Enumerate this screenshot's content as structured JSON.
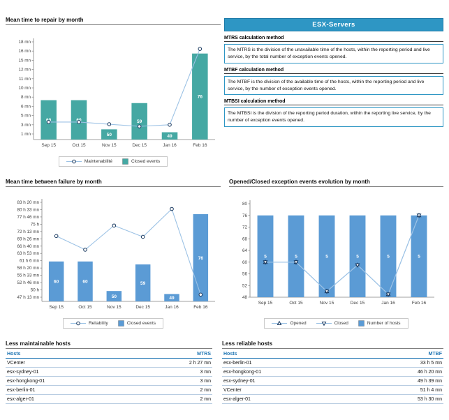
{
  "panel": {
    "title": "ESX-Servers",
    "sections": [
      {
        "heading": "MTRS calculation method",
        "body": "The MTRS is the division of the unavailable time of the hosts, within the reporting period and live service, by the total number of exception events opened."
      },
      {
        "heading": "MTBF calculation method",
        "body": "The MTBF is the division of the available time of the hosts, within the reporting period and live service, by the number of exception events opened."
      },
      {
        "heading": "MTBSI calculation method",
        "body": "The MTBSI is the division of the reporting period duration, within the reporting live service, by the number of exception events opened."
      }
    ]
  },
  "tables": [
    {
      "title": "Less maintainable hosts",
      "columns": [
        "Hosts",
        "MTRS"
      ],
      "rows": [
        [
          "VCenter",
          "2 h 27 mn"
        ],
        [
          "esx-sydney-01",
          "3 mn"
        ],
        [
          "esx-hongkong-01",
          "3 mn"
        ],
        [
          "esx-berlin-01",
          "2 mn"
        ],
        [
          "esx-alger-01",
          "2 mn"
        ]
      ]
    },
    {
      "title": "Less reliable hosts",
      "columns": [
        "Hosts",
        "MTBF"
      ],
      "rows": [
        [
          "esx-berlin-01",
          "33 h 5 mn"
        ],
        [
          "esx-hongkong-01",
          "46 h 20 mn"
        ],
        [
          "esx-sydney-01",
          "49 h 39 mn"
        ],
        [
          "VCenter",
          "51 h 4 mn"
        ],
        [
          "esx-alger-01",
          "53 h 30 mn"
        ]
      ]
    }
  ],
  "chart_data": [
    {
      "id": "mttr",
      "type": "bar",
      "title": "Mean time to repair by month",
      "categories": [
        "Sep 15",
        "Oct 15",
        "Nov 15",
        "Dec 15",
        "Jan 16",
        "Feb 16"
      ],
      "y_ticks": [
        "18 mn",
        "16 mn",
        "15 mn",
        "12 mn",
        "11 mn",
        "10 mn",
        "8 mn",
        "6 mn",
        "5 mn",
        "3 mn",
        "1 mn"
      ],
      "y_axis": {
        "min": 1,
        "max": 18,
        "unit": "mn"
      },
      "bars": {
        "name": "Closed events",
        "values": [
          60,
          60,
          50,
          59,
          49,
          76
        ],
        "hidden_axis": {
          "min": 46.5,
          "max": 80
        },
        "color": "#45A8A3"
      },
      "lines": [
        {
          "name": "Maintenabilité",
          "marker": "circle",
          "unit": "mn",
          "values": [
            3.2,
            3.2,
            2.8,
            2.4,
            2.7,
            16.7
          ]
        }
      ],
      "legend_position": "bottom",
      "grid": false
    },
    {
      "id": "mtbf",
      "type": "bar",
      "title": "Mean time between failure by month",
      "categories": [
        "Sep 15",
        "Oct 15",
        "Nov 15",
        "Dec 15",
        "Jan 16",
        "Feb 16"
      ],
      "y_ticks": [
        "83 h 20 mn",
        "80 h 33 mn",
        "77 h 46 mn",
        "75 h",
        "72 h 13 mn",
        "69 h 26 mn",
        "66 h 40 mn",
        "63 h 53 mn",
        "61 h 6 mn",
        "58 h 20 mn",
        "55 h 33 mn",
        "52 h 46 mn",
        "50 h",
        "47 h 13 mn"
      ],
      "y_axis": {
        "min": 47.2167,
        "max": 83.3333,
        "unit": "h"
      },
      "bars": {
        "name": "Closed events",
        "values": [
          60,
          60,
          50,
          59,
          49,
          76
        ],
        "hidden_axis": {
          "min": 46.5,
          "max": 80
        },
        "color": "#5B9BD5"
      },
      "lines": [
        {
          "name": "Reliability",
          "marker": "circle",
          "unit": "h",
          "values": [
            70.5,
            65.3,
            74.5,
            70.2,
            80.8,
            48.2
          ]
        }
      ],
      "legend_position": "bottom",
      "grid": false
    },
    {
      "id": "events",
      "type": "bar",
      "title": "Opened/Closed exception events evolution by month",
      "categories": [
        "Sep 15",
        "Oct 15",
        "Nov 15",
        "Dec 15",
        "Jan 16",
        "Feb 16"
      ],
      "y_ticks": [
        "80",
        "76",
        "72",
        "68",
        "64",
        "60",
        "56",
        "52",
        "48"
      ],
      "y_axis": {
        "min": 48,
        "max": 80,
        "unit": "events"
      },
      "bars": {
        "name": "Number of hosts",
        "values": [
          5,
          5,
          5,
          5,
          5,
          5
        ],
        "hidden_axis": {
          "min": 0,
          "max": 5.714
        },
        "color": "#5B9BD5"
      },
      "lines": [
        {
          "name": "Opened",
          "marker": "triangle-up",
          "unit": "events",
          "values": [
            60,
            60,
            50,
            59,
            49,
            76
          ]
        },
        {
          "name": "Closed",
          "marker": "triangle-down",
          "unit": "events",
          "values": [
            60,
            60,
            50,
            59,
            49,
            76
          ]
        }
      ],
      "legend_position": "bottom",
      "grid": false
    }
  ]
}
